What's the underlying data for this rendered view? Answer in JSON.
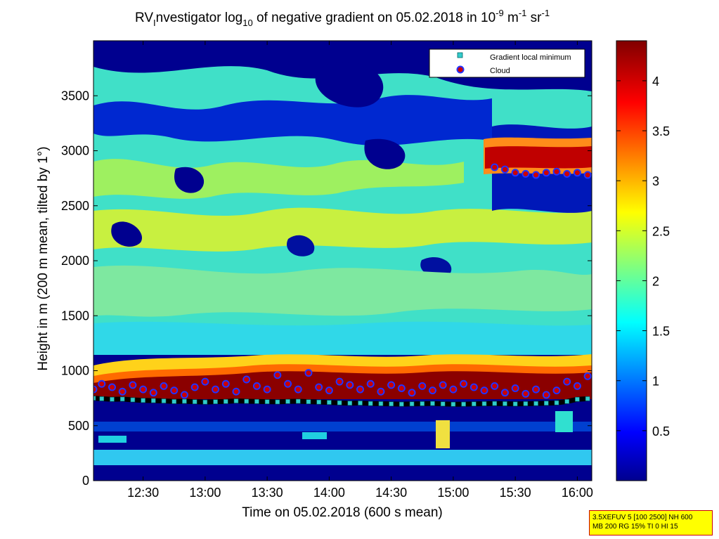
{
  "chart_data": {
    "type": "heatmap",
    "title": {
      "prefix": "RV",
      "prefix_sub": "I",
      "main": "nvestigator log",
      "log_sub": "10",
      "mid": " of negative gradient on 05.02.2018 in 10",
      "exp1": "-9",
      "unit_m": " m",
      "exp2": "-1",
      "unit_sr": " sr",
      "exp3": "-1"
    },
    "xlabel": "Time on 05.02.2018 (600 s mean)",
    "ylabel": "Height in m (200 m mean, tilted by 1°)",
    "x_range": [
      "12:06",
      "16:07"
    ],
    "x_ticks": [
      "12:30",
      "13:00",
      "13:30",
      "14:00",
      "14:30",
      "15:00",
      "15:30",
      "16:00"
    ],
    "y_range": [
      0,
      4000
    ],
    "y_ticks": [
      "0",
      "500",
      "1000",
      "1500",
      "2000",
      "2500",
      "3000",
      "3500"
    ],
    "colorbar": {
      "range": [
        0,
        4.4
      ],
      "ticks": [
        "0.5",
        "1",
        "1.5",
        "2",
        "2.5",
        "3",
        "3.5",
        "4"
      ],
      "colormap": "jet"
    },
    "legend": {
      "position": "top-right",
      "entries": [
        {
          "label": "Gradient local minimum",
          "color": "#33cccc",
          "marker": "square"
        },
        {
          "label": "Cloud",
          "color": "#cc0000",
          "edge": "#2233ff",
          "marker": "circle"
        }
      ]
    },
    "series": [
      {
        "name": "Gradient local minimum",
        "x": [
          "12:06",
          "12:10",
          "12:15",
          "12:20",
          "12:25",
          "12:30",
          "12:35",
          "12:40",
          "12:45",
          "12:50",
          "12:55",
          "13:00",
          "13:05",
          "13:10",
          "13:15",
          "13:20",
          "13:25",
          "13:30",
          "13:35",
          "13:40",
          "13:45",
          "13:50",
          "13:55",
          "14:00",
          "14:05",
          "14:10",
          "14:15",
          "14:20",
          "14:25",
          "14:30",
          "14:35",
          "14:40",
          "14:45",
          "14:50",
          "14:55",
          "15:00",
          "15:05",
          "15:10",
          "15:15",
          "15:20",
          "15:25",
          "15:30",
          "15:35",
          "15:40",
          "15:45",
          "15:50",
          "15:55",
          "16:00",
          "16:05"
        ],
        "y": [
          750,
          745,
          740,
          742,
          735,
          730,
          728,
          725,
          720,
          722,
          718,
          715,
          718,
          720,
          725,
          722,
          720,
          718,
          716,
          720,
          722,
          718,
          715,
          712,
          708,
          705,
          706,
          702,
          700,
          698,
          696,
          698,
          700,
          702,
          698,
          695,
          696,
          698,
          700,
          702,
          700,
          698,
          700,
          702,
          705,
          708,
          720,
          740,
          745
        ]
      },
      {
        "name": "Cloud",
        "x": [
          "12:06",
          "12:10",
          "12:15",
          "12:20",
          "12:25",
          "12:30",
          "12:35",
          "12:40",
          "12:45",
          "12:50",
          "12:55",
          "13:00",
          "13:05",
          "13:10",
          "13:15",
          "13:20",
          "13:25",
          "13:30",
          "13:35",
          "13:40",
          "13:45",
          "13:50",
          "13:55",
          "14:00",
          "14:05",
          "14:10",
          "14:15",
          "14:20",
          "14:25",
          "14:30",
          "14:35",
          "14:40",
          "14:45",
          "14:50",
          "14:55",
          "15:00",
          "15:05",
          "15:10",
          "15:15",
          "15:20",
          "15:25",
          "15:30",
          "15:35",
          "15:40",
          "15:45",
          "15:50",
          "15:55",
          "16:00",
          "16:05",
          "15:20",
          "15:25",
          "15:30",
          "15:35",
          "15:40",
          "15:45",
          "15:50",
          "15:55",
          "16:00",
          "16:05"
        ],
        "y": [
          830,
          880,
          850,
          810,
          870,
          830,
          800,
          860,
          820,
          780,
          850,
          900,
          830,
          880,
          810,
          920,
          860,
          830,
          960,
          880,
          830,
          980,
          850,
          820,
          900,
          870,
          830,
          880,
          810,
          870,
          840,
          800,
          860,
          820,
          870,
          830,
          880,
          850,
          820,
          860,
          800,
          840,
          790,
          830,
          780,
          820,
          900,
          860,
          950,
          2850,
          2830,
          2800,
          2790,
          2780,
          2800,
          2810,
          2790,
          2800,
          2780
        ]
      }
    ]
  },
  "info_box": {
    "line1": "3.5XEFUV 5 [100 2500] NH 600",
    "line2": "MB 200 RG 15% TI 0 HI 15"
  }
}
